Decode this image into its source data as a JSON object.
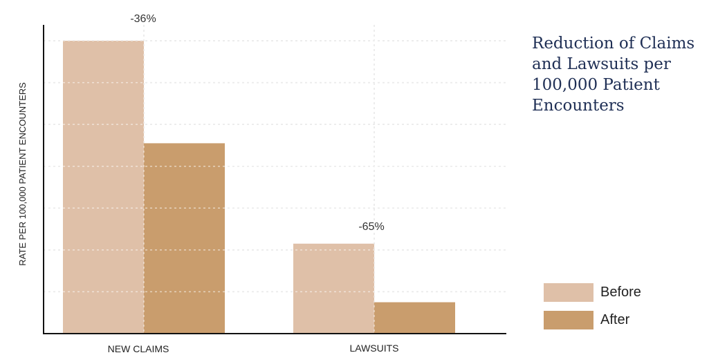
{
  "chart_data": {
    "type": "bar",
    "title": "Reduction of Claims and Lawsuits per 100,000 Patient Encounters",
    "ylabel": "RATE PER 100,000 PATIENT ENCOUNTERS",
    "xlabel": "",
    "categories": [
      "NEW CLAIMS",
      "LAWSUITS"
    ],
    "series": [
      {
        "name": "Before",
        "color": "#dfc0a8",
        "values": [
          7.0,
          2.15
        ]
      },
      {
        "name": "After",
        "color": "#c99d6d",
        "values": [
          4.55,
          0.75
        ]
      }
    ],
    "annotations": [
      "-36%",
      "-65%"
    ],
    "ylim": [
      0,
      7.5
    ],
    "grid": true,
    "legend_position": "bottom-right"
  }
}
